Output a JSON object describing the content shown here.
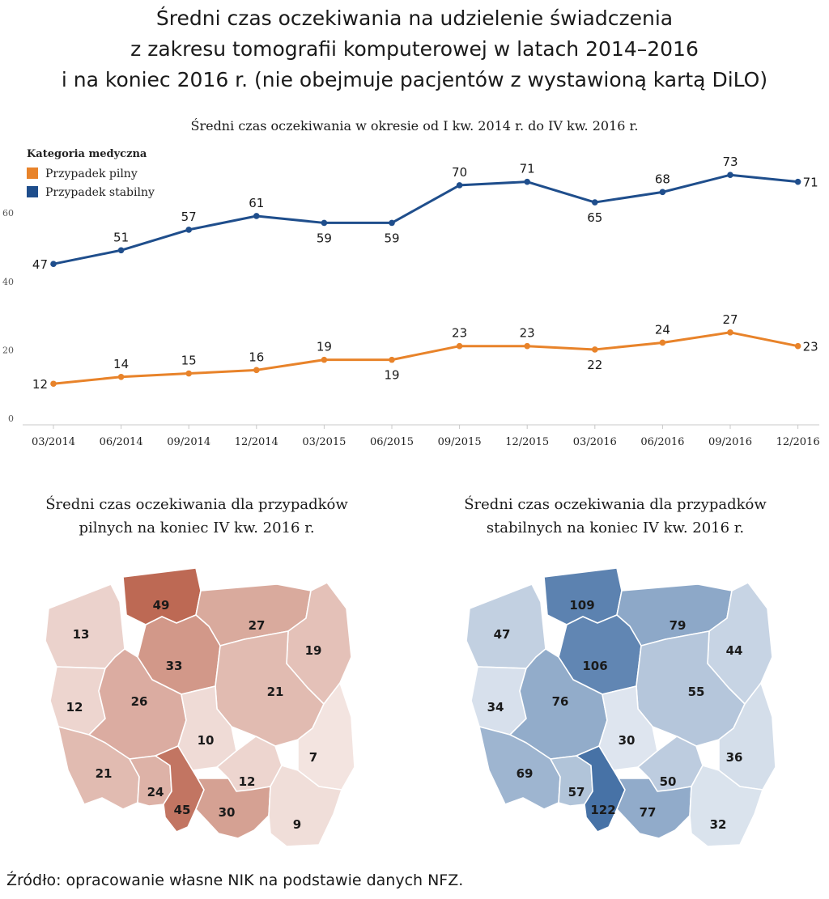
{
  "title": {
    "line1": "Średni czas oczekiwania  na udzielenie świadczenia",
    "line2": "z zakresu tomografii komputerowej  w latach 2014–2016",
    "line3": "i na koniec 2016 r. (nie obejmuje pacjentów z wystawioną kartą DiLO)"
  },
  "chart_data": [
    {
      "type": "line",
      "title": "Średni czas oczekiwania w okresie  od I kw. 2014 r. do IV kw. 2016 r.",
      "legend_title": "Kategoria medyczna",
      "legend_position": "top-left",
      "categories": [
        "03/2014",
        "06/2014",
        "09/2014",
        "12/2014",
        "03/2015",
        "06/2015",
        "09/2015",
        "12/2015",
        "03/2016",
        "06/2016",
        "09/2016",
        "12/2016"
      ],
      "yticks": [
        0,
        20,
        40,
        60
      ],
      "ylim": [
        0,
        75
      ],
      "grid": false,
      "series": [
        {
          "name": "Przypadek pilny",
          "color": "#e8832a",
          "values": [
            12,
            14,
            15,
            16,
            19,
            19,
            23,
            23,
            22,
            24,
            27,
            23
          ]
        },
        {
          "name": "Przypadek stabilny",
          "color": "#1f4e8c",
          "values": [
            47,
            51,
            57,
            61,
            59,
            59,
            70,
            71,
            65,
            68,
            73,
            71
          ]
        }
      ]
    }
  ],
  "maps": {
    "urgent": {
      "title_line1": "Średni czas oczekiwania dla przypadków",
      "title_line2": "pilnych na koniec IV kw. 2016 r.",
      "base_color": "#b4553d",
      "values": {
        "pomorskie": 49,
        "zachodniopomorskie": 13,
        "warminsko-mazurskie": 27,
        "podlaskie": 19,
        "kujawsko-pomorskie": 33,
        "lubuskie": 12,
        "wielkopolskie": 26,
        "mazowieckie": 21,
        "lodzkie": 10,
        "lubelskie": 7,
        "dolnoslaskie": 21,
        "opolskie": 24,
        "slaskie": 45,
        "swietokrzyskie": 12,
        "malopolskie": 30,
        "podkarpackie": 9
      }
    },
    "stable": {
      "title_line1": "Średni czas oczekiwania dla przypadków",
      "title_line2": "stabilnych na koniec IV kw. 2016 r.",
      "base_color": "#2e5f9a",
      "values": {
        "pomorskie": 109,
        "zachodniopomorskie": 47,
        "warminsko-mazurskie": 79,
        "podlaskie": 44,
        "kujawsko-pomorskie": 106,
        "lubuskie": 34,
        "wielkopolskie": 76,
        "mazowieckie": 55,
        "lodzkie": 30,
        "lubelskie": 36,
        "dolnoslaskie": 69,
        "opolskie": 57,
        "slaskie": 122,
        "swietokrzyskie": 50,
        "malopolskie": 77,
        "podkarpackie": 32
      }
    }
  },
  "source": "Źródło: opracowanie własne NIK na podstawie danych NFZ."
}
